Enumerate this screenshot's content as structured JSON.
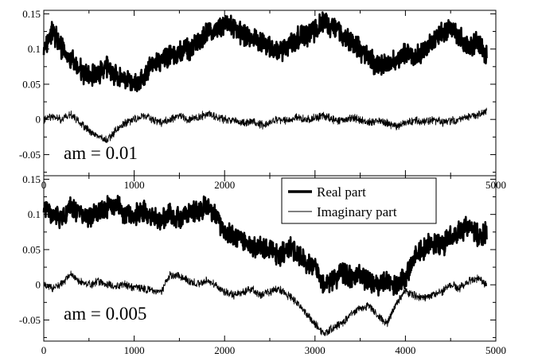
{
  "chart_data": [
    {
      "type": "line",
      "annotation": "am = 0.01",
      "xlim": [
        0,
        5000
      ],
      "ylim": [
        -0.08,
        0.155
      ],
      "x_ticks": [
        0,
        1000,
        2000,
        3000,
        4000,
        5000
      ],
      "x_tick_labels": [
        "0",
        "1000",
        "2000",
        "3000",
        "4000",
        "5000"
      ],
      "y_ticks": [
        -0.05,
        0,
        0.05,
        0.1,
        0.15
      ],
      "y_tick_labels": [
        "-0.05",
        "0",
        "0.05",
        "0.1",
        "0.15"
      ],
      "grid": false,
      "series": [
        {
          "name": "Real part",
          "style": "thick",
          "x": [
            0,
            100,
            200,
            300,
            400,
            500,
            600,
            700,
            800,
            900,
            1000,
            1100,
            1200,
            1300,
            1400,
            1500,
            1600,
            1700,
            1800,
            1900,
            2000,
            2100,
            2200,
            2300,
            2400,
            2500,
            2600,
            2700,
            2800,
            2900,
            3000,
            3100,
            3200,
            3300,
            3400,
            3500,
            3600,
            3700,
            3800,
            3900,
            4000,
            4100,
            4200,
            4300,
            4400,
            4500,
            4600,
            4700,
            4800,
            4900
          ],
          "y": [
            0.1,
            0.125,
            0.1,
            0.085,
            0.07,
            0.06,
            0.065,
            0.075,
            0.06,
            0.055,
            0.05,
            0.06,
            0.075,
            0.085,
            0.09,
            0.095,
            0.1,
            0.11,
            0.125,
            0.13,
            0.135,
            0.13,
            0.12,
            0.115,
            0.11,
            0.105,
            0.095,
            0.105,
            0.115,
            0.12,
            0.125,
            0.14,
            0.13,
            0.12,
            0.11,
            0.1,
            0.085,
            0.075,
            0.08,
            0.085,
            0.095,
            0.09,
            0.1,
            0.11,
            0.125,
            0.13,
            0.115,
            0.105,
            0.11,
            0.09
          ]
        },
        {
          "name": "Imaginary part",
          "style": "thin",
          "x": [
            0,
            100,
            200,
            300,
            400,
            500,
            600,
            700,
            800,
            900,
            1000,
            1100,
            1200,
            1300,
            1400,
            1500,
            1600,
            1700,
            1800,
            1900,
            2000,
            2100,
            2200,
            2300,
            2400,
            2500,
            2600,
            2700,
            2800,
            2900,
            3000,
            3100,
            3200,
            3300,
            3400,
            3500,
            3600,
            3700,
            3800,
            3900,
            4000,
            4100,
            4200,
            4300,
            4400,
            4500,
            4600,
            4700,
            4800,
            4900
          ],
          "y": [
            0.0,
            0.005,
            0.0,
            0.008,
            -0.005,
            -0.015,
            -0.025,
            -0.03,
            -0.015,
            -0.005,
            0.0,
            0.005,
            0.0,
            -0.005,
            0.0,
            0.005,
            0.0,
            0.002,
            0.008,
            0.005,
            0.0,
            -0.002,
            -0.005,
            -0.003,
            -0.008,
            -0.005,
            0.0,
            -0.002,
            0.003,
            0.0,
            0.002,
            0.005,
            0.0,
            -0.003,
            0.002,
            0.0,
            -0.005,
            -0.002,
            -0.006,
            -0.01,
            -0.005,
            -0.002,
            -0.003,
            0.0,
            -0.004,
            -0.002,
            0.0,
            0.004,
            0.007,
            0.012
          ]
        }
      ]
    },
    {
      "type": "line",
      "annotation": "am = 0.005",
      "xlim": [
        0,
        5000
      ],
      "ylim": [
        -0.08,
        0.155
      ],
      "x_ticks": [
        0,
        1000,
        2000,
        3000,
        4000,
        5000
      ],
      "x_tick_labels": [
        "0",
        "1000",
        "2000",
        "3000",
        "4000",
        "5000"
      ],
      "y_ticks": [
        -0.05,
        0,
        0.05,
        0.1,
        0.15
      ],
      "y_tick_labels": [
        "-0.05",
        "0",
        "0.05",
        "0.1",
        "0.15"
      ],
      "grid": false,
      "legend_position": "top-center",
      "series": [
        {
          "name": "Real part",
          "style": "thick",
          "x": [
            0,
            100,
            200,
            300,
            400,
            500,
            600,
            700,
            800,
            900,
            1000,
            1100,
            1200,
            1300,
            1400,
            1500,
            1600,
            1700,
            1800,
            1900,
            2000,
            2100,
            2200,
            2300,
            2400,
            2500,
            2600,
            2700,
            2800,
            2900,
            3000,
            3100,
            3200,
            3300,
            3400,
            3500,
            3600,
            3700,
            3800,
            3900,
            4000,
            4100,
            4200,
            4300,
            4400,
            4500,
            4600,
            4700,
            4800,
            4900
          ],
          "y": [
            0.105,
            0.1,
            0.095,
            0.11,
            0.1,
            0.095,
            0.105,
            0.11,
            0.115,
            0.1,
            0.1,
            0.105,
            0.095,
            0.09,
            0.1,
            0.095,
            0.1,
            0.105,
            0.11,
            0.1,
            0.075,
            0.07,
            0.065,
            0.05,
            0.055,
            0.05,
            0.04,
            0.055,
            0.045,
            0.03,
            0.025,
            0.0,
            0.005,
            0.015,
            0.01,
            0.015,
            0.005,
            0.0,
            0.005,
            0.0,
            0.01,
            0.04,
            0.05,
            0.06,
            0.055,
            0.07,
            0.075,
            0.085,
            0.07,
            0.075
          ]
        },
        {
          "name": "Imaginary part",
          "style": "thin",
          "x": [
            0,
            100,
            200,
            300,
            400,
            500,
            600,
            700,
            800,
            900,
            1000,
            1100,
            1200,
            1300,
            1400,
            1500,
            1600,
            1700,
            1800,
            1900,
            2000,
            2100,
            2200,
            2300,
            2400,
            2500,
            2600,
            2700,
            2800,
            2900,
            3000,
            3100,
            3200,
            3300,
            3400,
            3500,
            3600,
            3700,
            3800,
            3900,
            4000,
            4100,
            4200,
            4300,
            4400,
            4500,
            4600,
            4700,
            4800,
            4900
          ],
          "y": [
            0.0,
            -0.005,
            0.002,
            0.015,
            0.005,
            0.0,
            0.005,
            0.0,
            -0.002,
            0.0,
            -0.005,
            -0.005,
            -0.008,
            -0.01,
            0.015,
            0.012,
            0.005,
            0.002,
            0.005,
            0.0,
            -0.01,
            -0.015,
            -0.01,
            -0.005,
            -0.015,
            -0.01,
            -0.005,
            -0.015,
            -0.025,
            -0.04,
            -0.055,
            -0.07,
            -0.06,
            -0.055,
            -0.04,
            -0.035,
            -0.03,
            -0.045,
            -0.055,
            -0.025,
            -0.01,
            -0.015,
            -0.02,
            -0.015,
            -0.01,
            0.0,
            -0.005,
            0.005,
            0.01,
            0.0
          ]
        }
      ]
    }
  ],
  "legend": {
    "items": [
      {
        "label": "Real part",
        "style": "thick"
      },
      {
        "label": "Imaginary part",
        "style": "thin"
      }
    ]
  }
}
